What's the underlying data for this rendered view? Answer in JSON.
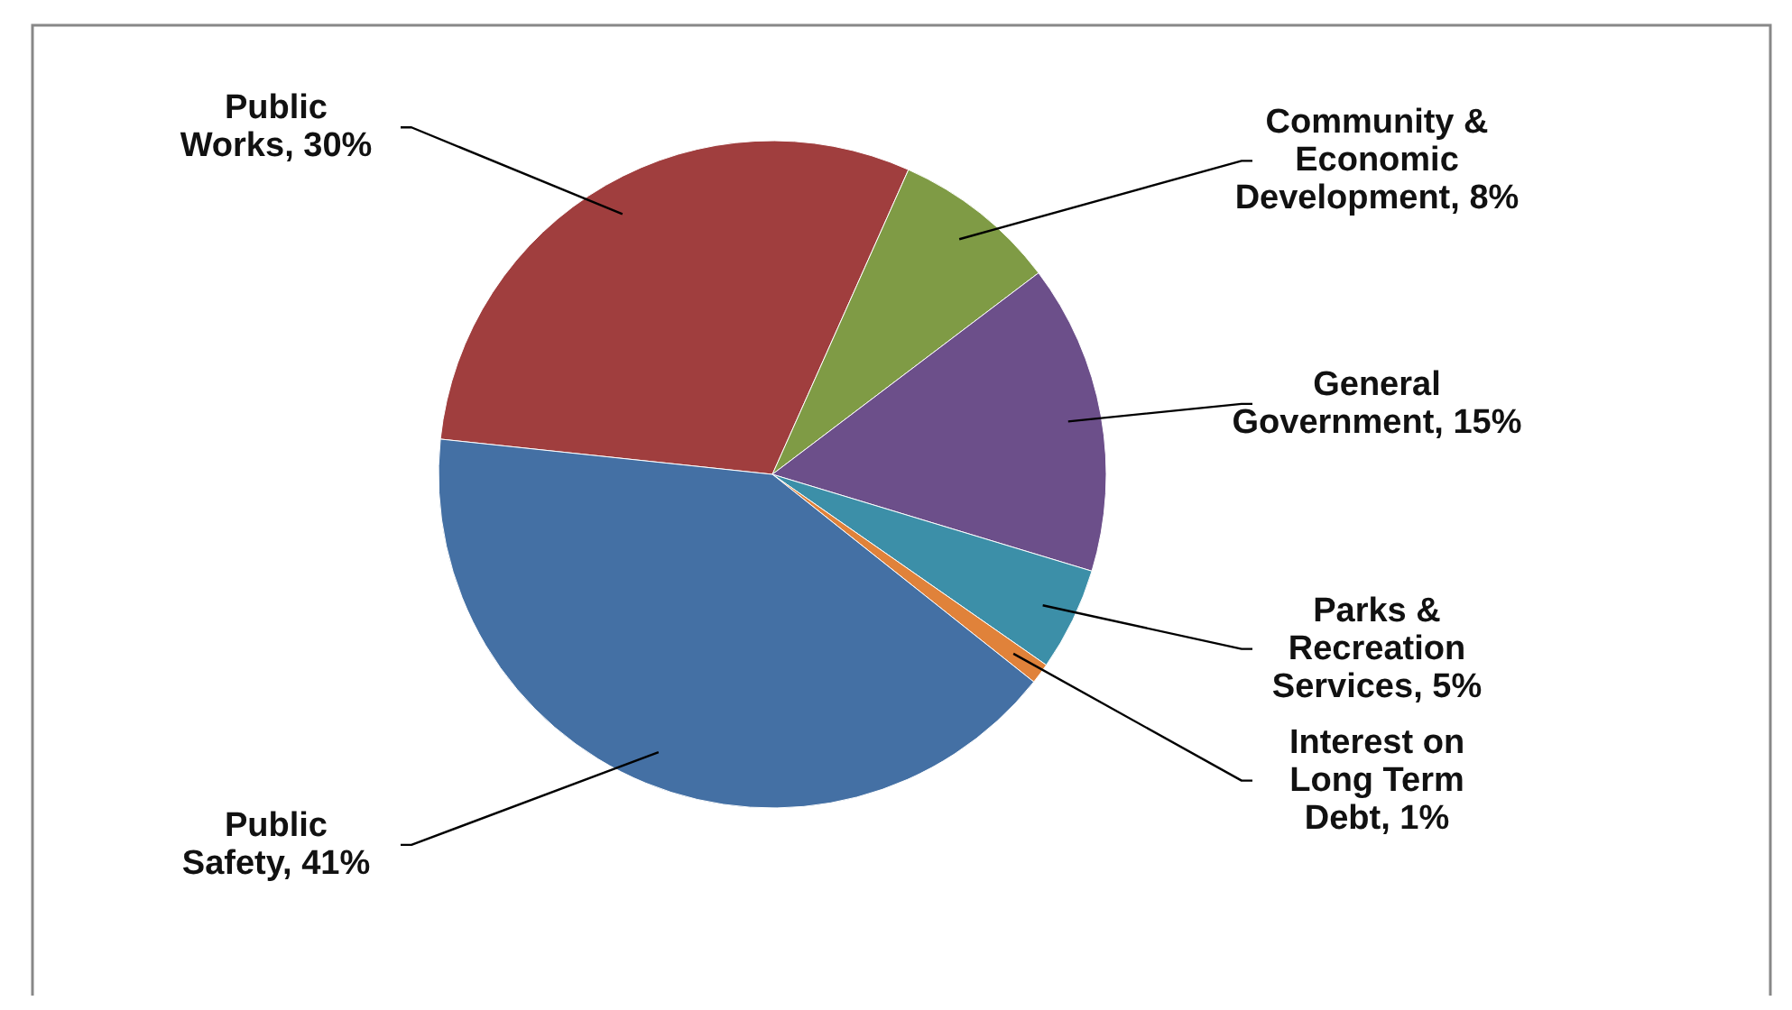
{
  "chart_data": {
    "type": "pie",
    "categories": [
      "Public Works",
      "Community & Economic Development",
      "General Government",
      "Parks & Recreation Services",
      "Interest on Long Term Debt",
      "Public Safety"
    ],
    "values": [
      30,
      8,
      15,
      5,
      1,
      41
    ],
    "value_labels": [
      "30%",
      "8%",
      "15%",
      "5%",
      "1%",
      "41%"
    ],
    "colors": [
      "#a03e3e",
      "#7f9b45",
      "#6c4f8a",
      "#3c8fa8",
      "#e0823a",
      "#4470a4"
    ]
  }
}
